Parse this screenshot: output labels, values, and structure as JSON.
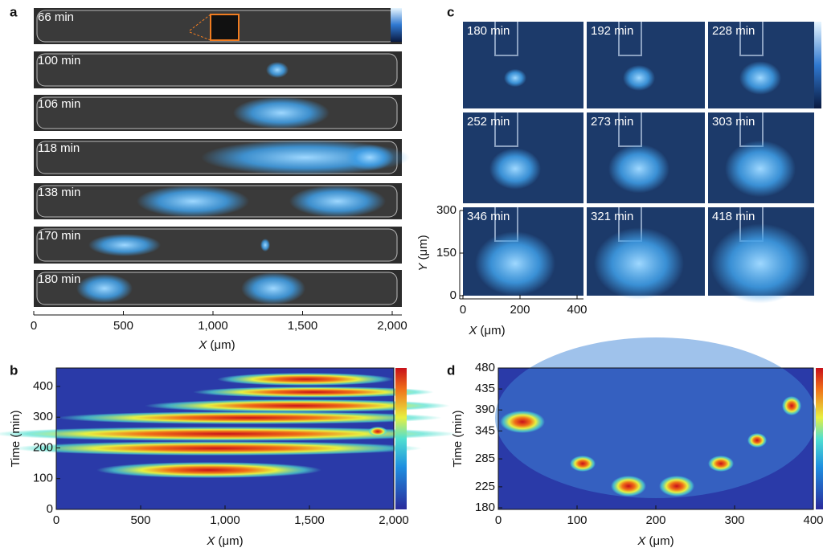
{
  "panels": {
    "a": {
      "label": "a",
      "frames": [
        "66 min",
        "100 min",
        "106 min",
        "118 min",
        "138 min",
        "170 min",
        "180 min"
      ],
      "xlim": [
        0,
        2000
      ],
      "xticks": [
        0,
        500,
        {
          "value": 1000,
          "label": "1,000"
        },
        {
          "value": 1500,
          "label": "1,500"
        },
        {
          "value": 2000,
          "label": "2,000"
        }
      ],
      "xlabel": {
        "var": "X",
        "unit": "(μm)"
      }
    },
    "b": {
      "label": "b",
      "xlim": [
        0,
        2000
      ],
      "xticks": [
        0,
        500,
        {
          "value": 1000,
          "label": "1,000"
        },
        {
          "value": 1500,
          "label": "1,500"
        },
        {
          "value": 2000,
          "label": "2,000"
        }
      ],
      "ylim": [
        0,
        460
      ],
      "yticks": [
        0,
        100,
        200,
        300,
        400
      ],
      "xlabel": {
        "var": "X",
        "unit": "(μm)"
      },
      "ylabel": "Time (min)"
    },
    "c": {
      "label": "c",
      "frames": [
        "180 min",
        "192 min",
        "228 min",
        "252 min",
        "273 min",
        "303 min",
        "346 min",
        "321 min",
        "418 min"
      ],
      "xlim": [
        0,
        400
      ],
      "xticks": [
        0,
        200,
        400
      ],
      "ylim": [
        0,
        300
      ],
      "yticks": [
        0,
        150,
        300
      ],
      "xlabel": {
        "var": "X",
        "unit": "(μm)"
      },
      "ylabel": {
        "var": "Y",
        "unit": "(μm)"
      }
    },
    "d": {
      "label": "d",
      "xlim": [
        0,
        400
      ],
      "xticks": [
        0,
        100,
        200,
        300,
        400
      ],
      "ylim": [
        180,
        480
      ],
      "yticks": [
        180,
        225,
        285,
        345,
        390,
        435,
        480
      ],
      "xlabel": {
        "var": "X",
        "unit": "(μm)"
      },
      "ylabel": "Time (min)"
    }
  }
}
